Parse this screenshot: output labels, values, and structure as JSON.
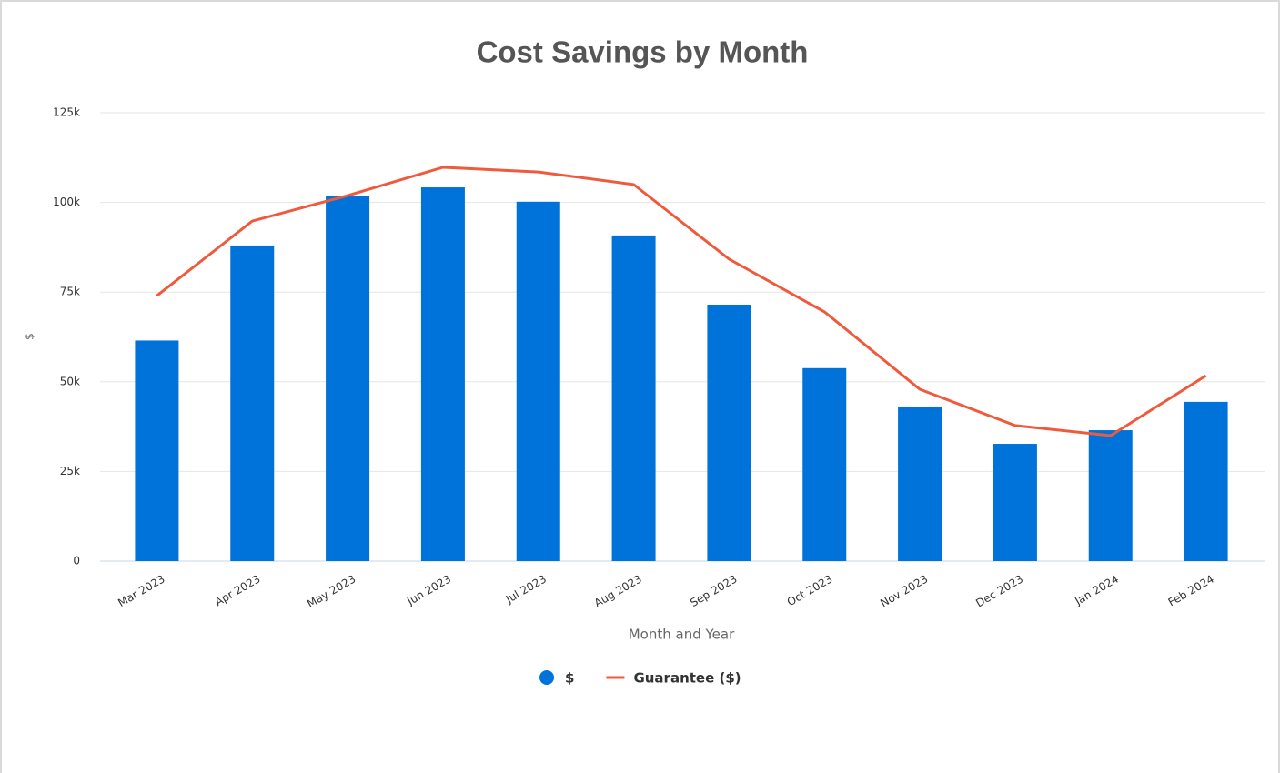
{
  "chart_data": {
    "type": "bar_line",
    "title": "Cost Savings by Month",
    "x_label": "Month and Year",
    "y_label": "$",
    "categories": [
      "Mar 2023",
      "Apr 2023",
      "May 2023",
      "Jun 2023",
      "Jul 2023",
      "Aug 2023",
      "Sep 2023",
      "Oct 2023",
      "Nov 2023",
      "Dec 2023",
      "Jan 2024",
      "Feb 2024"
    ],
    "series": [
      {
        "name": "$",
        "type": "bar",
        "color": "#0073da",
        "values": [
          61500,
          88000,
          101700,
          104200,
          100200,
          90800,
          71500,
          53800,
          43100,
          32700,
          36500,
          44400
        ]
      },
      {
        "name": "Guarantee ($)",
        "type": "line",
        "color": "#f05a3c",
        "values": [
          74000,
          94800,
          101900,
          109800,
          108500,
          105000,
          84200,
          69500,
          47900,
          37800,
          35000,
          51700
        ]
      }
    ],
    "ylim": [
      0,
      125000
    ],
    "yticks": [
      0,
      {
        "value": 25000,
        "label": "25k"
      },
      {
        "value": 50000,
        "label": "50k"
      },
      {
        "value": 75000,
        "label": "75k"
      },
      {
        "value": 100000,
        "label": "100k"
      },
      {
        "value": 125000,
        "label": "125k"
      }
    ],
    "grid": true,
    "legend": "bottom"
  }
}
